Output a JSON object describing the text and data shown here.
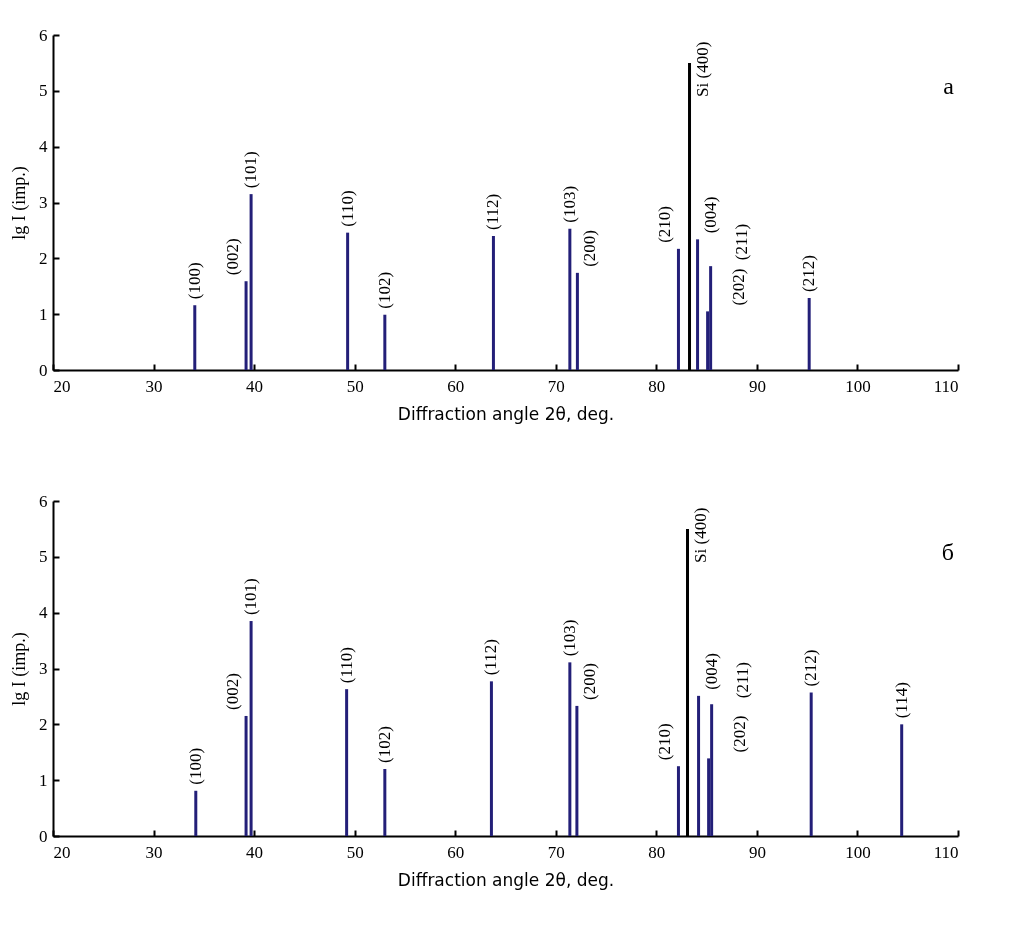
{
  "chart_data": [
    {
      "type": "bar",
      "xlabel": "Diffraction angle 2θ, deg.",
      "ylabel": "lg I (imp.)",
      "xlim": [
        20,
        110
      ],
      "xticks": [
        20,
        30,
        40,
        50,
        60,
        70,
        80,
        90,
        100,
        110
      ],
      "ylim": [
        0,
        6
      ],
      "yticks": [
        0,
        1,
        2,
        3,
        4,
        5,
        6
      ],
      "series": [
        {
          "color": "#231f78",
          "x": [
            34.1,
            39.2,
            39.7,
            49.3,
            53.0,
            63.8,
            71.4,
            72.15,
            82.2,
            84.1,
            85.1,
            85.4,
            95.2
          ],
          "values": [
            1.16,
            1.59,
            3.15,
            2.46,
            0.99,
            2.4,
            2.53,
            1.74,
            2.17,
            2.34,
            1.05,
            1.86,
            1.29
          ]
        },
        {
          "color": "#000000",
          "x": [
            83.3
          ],
          "values": [
            5.5
          ]
        }
      ],
      "annotations": [
        {
          "text": "(100)",
          "x": 34.1,
          "y": 1.16
        },
        {
          "text": "(002)",
          "x": 39.2,
          "y": 1.59
        },
        {
          "text": "(101)",
          "x": 39.7,
          "y": 3.15
        },
        {
          "text": "(110)",
          "x": 49.3,
          "y": 2.46
        },
        {
          "text": "(102)",
          "x": 53.0,
          "y": 0.99
        },
        {
          "text": "(112)",
          "x": 63.8,
          "y": 2.4
        },
        {
          "text": "(103)",
          "x": 71.4,
          "y": 2.53
        },
        {
          "text": "(200)",
          "x": 72.15,
          "y": 1.74
        },
        {
          "text": "(210)",
          "x": 82.2,
          "y": 2.17
        },
        {
          "text": "Si (400)",
          "x": 83.3,
          "y": 5.5
        },
        {
          "text": "(004)",
          "x": 84.1,
          "y": 2.34
        },
        {
          "text": "(211)",
          "x": 85.4,
          "y": 1.86
        },
        {
          "text": "(202)",
          "x": 85.1,
          "y": 1.05
        },
        {
          "text": "(212)",
          "x": 95.2,
          "y": 1.29
        },
        "а"
      ]
    },
    {
      "type": "bar",
      "xlabel": "Diffraction angle 2θ, deg.",
      "ylabel": "lg I (imp.)",
      "xlim": [
        20,
        110
      ],
      "xticks": [
        20,
        30,
        40,
        50,
        60,
        70,
        80,
        90,
        100,
        110
      ],
      "ylim": [
        0,
        6
      ],
      "yticks": [
        0,
        1,
        2,
        3,
        4,
        5,
        6
      ],
      "series": [
        {
          "color": "#231f78",
          "x": [
            34.2,
            39.2,
            39.7,
            49.2,
            53.0,
            63.6,
            71.4,
            72.1,
            82.2,
            84.2,
            85.2,
            85.5,
            95.4,
            104.4
          ],
          "values": [
            0.81,
            2.15,
            3.85,
            2.63,
            1.2,
            2.77,
            3.11,
            2.33,
            1.25,
            2.51,
            1.39,
            2.36,
            2.57,
            2.0
          ]
        },
        {
          "color": "#000000",
          "x": [
            83.1
          ],
          "values": [
            5.5
          ]
        }
      ],
      "annotations": [
        {
          "text": "(100)",
          "x": 34.2,
          "y": 0.81
        },
        {
          "text": "(002)",
          "x": 39.2,
          "y": 2.15
        },
        {
          "text": "(101)",
          "x": 39.7,
          "y": 3.85
        },
        {
          "text": "(110)",
          "x": 49.2,
          "y": 2.63
        },
        {
          "text": "(102)",
          "x": 53.0,
          "y": 1.2
        },
        {
          "text": "(112)",
          "x": 63.6,
          "y": 2.77
        },
        {
          "text": "(103)",
          "x": 71.4,
          "y": 3.11
        },
        {
          "text": "(200)",
          "x": 72.1,
          "y": 2.33
        },
        {
          "text": "(210)",
          "x": 82.2,
          "y": 1.25
        },
        {
          "text": "Si (400)",
          "x": 83.1,
          "y": 5.5
        },
        {
          "text": "(004)",
          "x": 84.2,
          "y": 2.51
        },
        {
          "text": "(211)",
          "x": 85.5,
          "y": 2.36
        },
        {
          "text": "(202)",
          "x": 85.2,
          "y": 1.39
        },
        {
          "text": "(212)",
          "x": 95.4,
          "y": 2.57
        },
        {
          "text": "(114)",
          "x": 104.4,
          "y": 2.0
        },
        "б"
      ]
    }
  ]
}
